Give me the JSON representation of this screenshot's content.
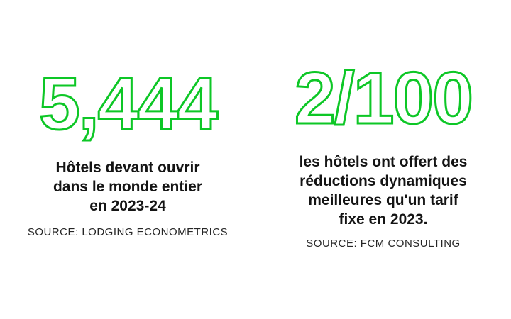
{
  "accent_color": "#0DC726",
  "background_color": "#FFFFFF",
  "text_color": "#141414",
  "stats": [
    {
      "value": "5,444",
      "headline_lines": [
        "Hôtels devant ouvrir",
        "dans le monde entier",
        "en 2023-24"
      ],
      "source": "SOURCE: LODGING ECONOMETRICS"
    },
    {
      "value": "2/100",
      "headline_lines": [
        "les hôtels ont offert des",
        "réductions dynamiques",
        "meilleures qu'un tarif",
        "fixe en 2023."
      ],
      "source": "SOURCE: FCM CONSULTING"
    }
  ],
  "chart_data": {
    "type": "table",
    "title": "",
    "columns": [
      "value",
      "label",
      "source"
    ],
    "rows": [
      [
        "5,444",
        "Hôtels devant ouvrir dans le monde entier en 2023-24",
        "LODGING ECONOMETRICS"
      ],
      [
        "2/100",
        "les hôtels ont offert des réductions dynamiques meilleures qu'un tarif fixe en 2023.",
        "FCM CONSULTING"
      ]
    ],
    "layout": "two stat callouts side by side, green outlined numerals, white background"
  }
}
